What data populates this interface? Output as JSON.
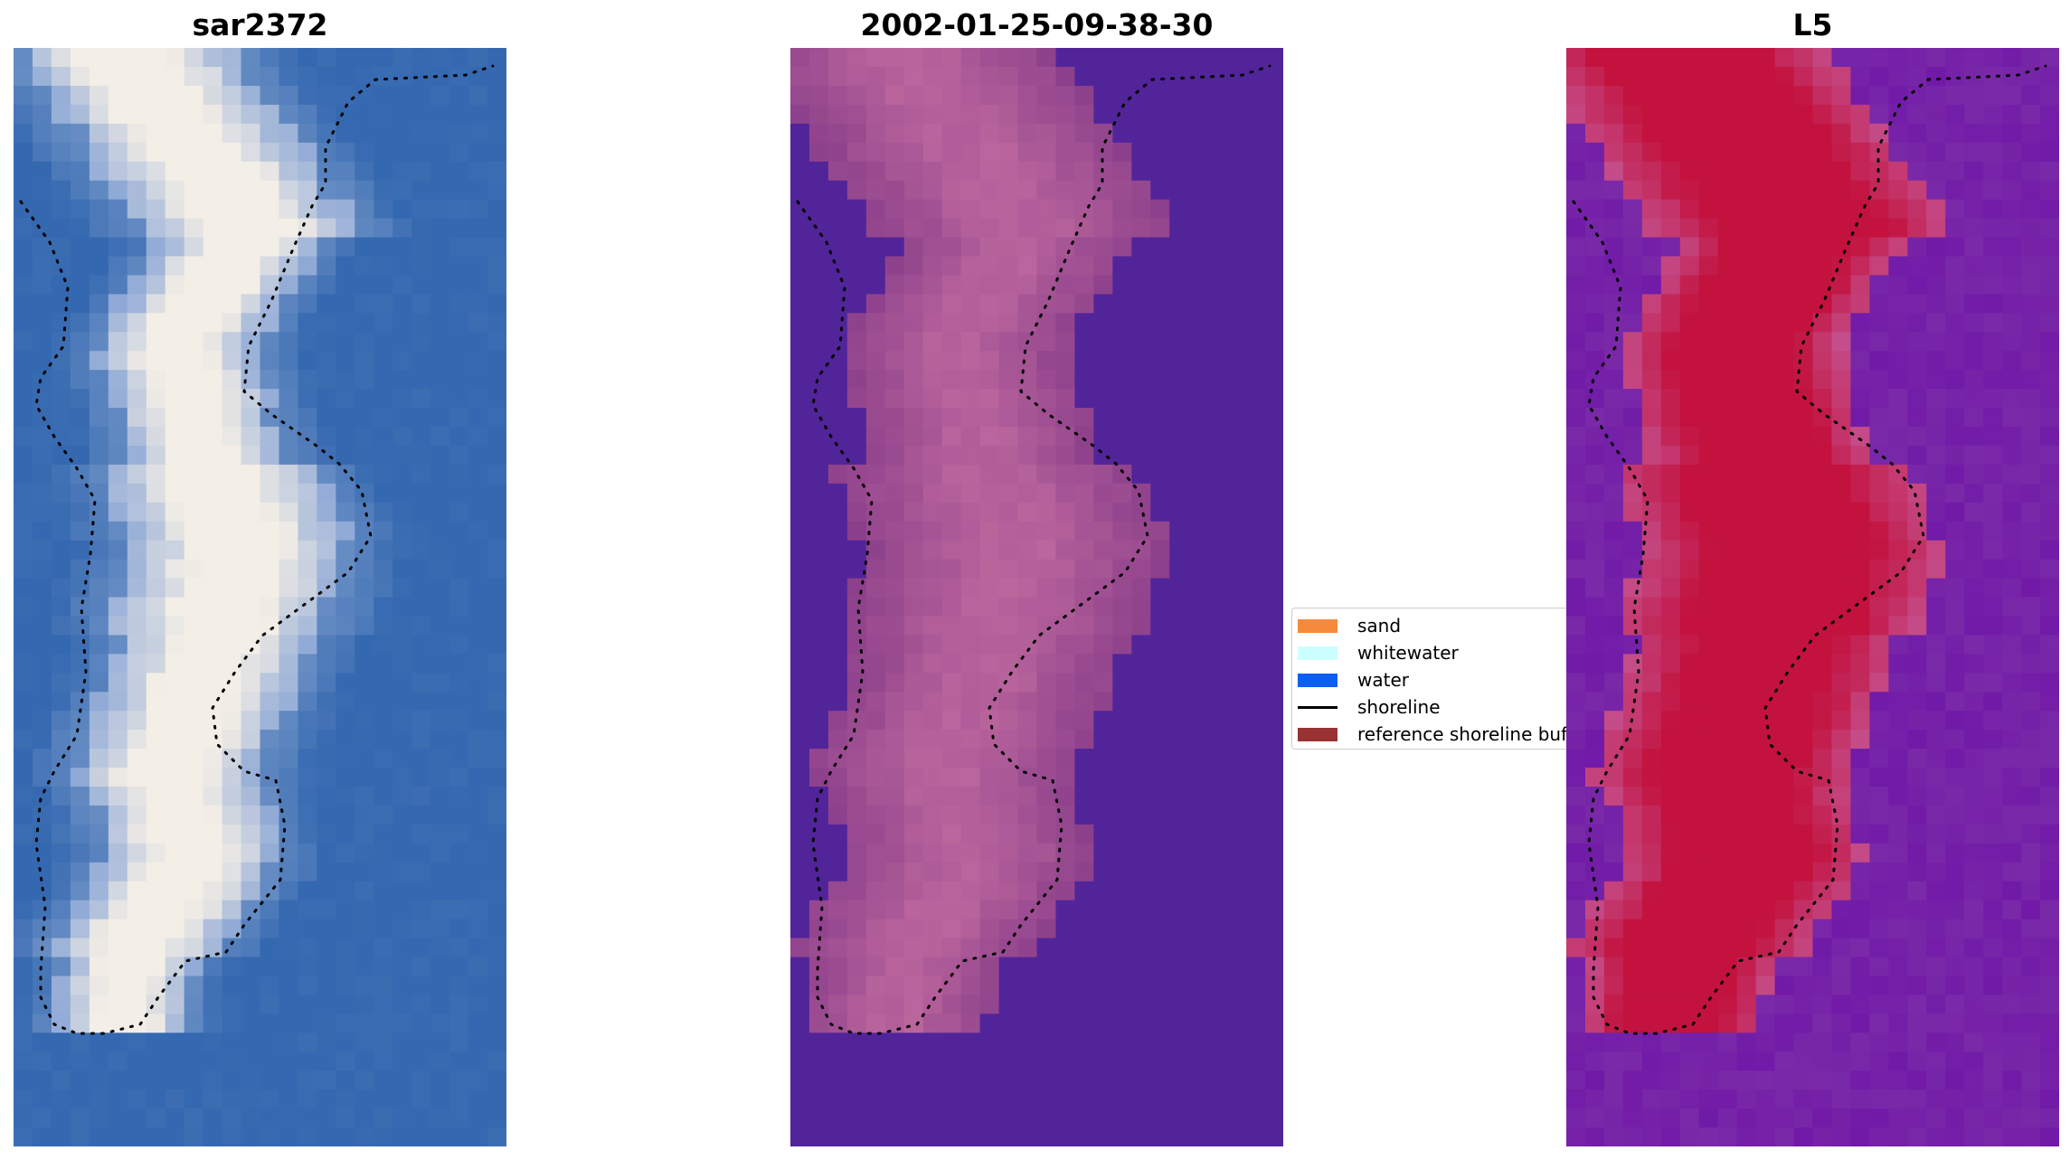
{
  "panels": [
    {
      "title": "sar2372"
    },
    {
      "title": "2002-01-25-09-38-30"
    },
    {
      "title": "L5"
    }
  ],
  "legend": {
    "items": [
      {
        "label": "sand",
        "color": "#f58a3c",
        "kind": "patch"
      },
      {
        "label": "whitewater",
        "color": "#ccffff",
        "kind": "patch"
      },
      {
        "label": "water",
        "color": "#0a5ef2",
        "kind": "patch"
      },
      {
        "label": "shoreline",
        "color": "#000000",
        "kind": "line"
      },
      {
        "label": "reference shoreline buffer",
        "color": "#993333",
        "kind": "patch"
      }
    ]
  },
  "colors": {
    "sar_water": "#3468b0",
    "sar_whitewater": "#f3eee6",
    "class_water": "#52249a",
    "class_land": "#8a3e8a",
    "l5_land": "#c3123e",
    "l5_water": "#7a2aa8",
    "shoreline_dots": "#000000"
  }
}
